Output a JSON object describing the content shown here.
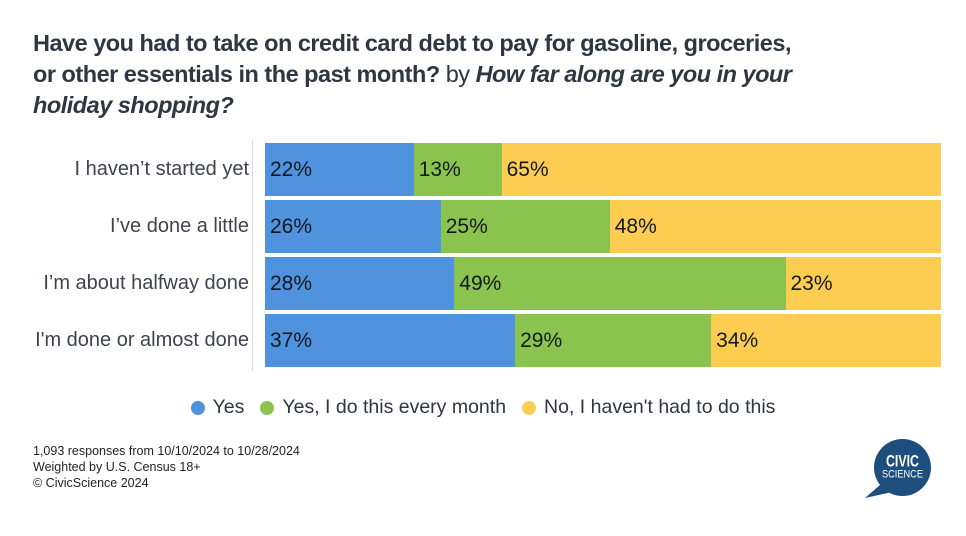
{
  "title": {
    "line1": "Have you had to take on credit card debt to pay for gasoline, groceries,",
    "line2_q1_end": "or other essentials in the past month?",
    "line2_connector": " by ",
    "line2_q2_start": "How far along are you in your",
    "line3": "holiday shopping?"
  },
  "chart_data": {
    "type": "bar",
    "variant": "horizontal-stacked",
    "unit": "%",
    "xlim": [
      0,
      100
    ],
    "grid": "off",
    "legend_position": "bottom-center",
    "value_labels": "inside-segment-start",
    "categories": [
      "I haven’t started yet",
      "I’ve done a little",
      "I’m about halfway done",
      "I'm done or almost done"
    ],
    "series": [
      {
        "name": "Yes",
        "color": "#4f92de",
        "values": [
          22,
          26,
          28,
          37
        ]
      },
      {
        "name": "Yes, I do this every month",
        "color": "#8bc34f",
        "values": [
          13,
          25,
          49,
          29
        ]
      },
      {
        "name": "No, I haven't had to do this",
        "color": "#fccd51",
        "values": [
          65,
          48,
          23,
          34
        ]
      }
    ]
  },
  "footer": {
    "lines": [
      "1,093 responses from 10/10/2024 to 10/28/2024",
      "Weighted by U.S. Census 18+",
      "© CivicScience 2024"
    ]
  },
  "logo": {
    "top": "CIVIC",
    "bottom": "SCIENCE",
    "bubble_color": "#1e4e7d"
  },
  "colors": {
    "title_text": "#2d3642",
    "category_text": "#3d4450",
    "value_text": "#14181d",
    "axis_line": "#d8dbdd",
    "background": "#ffffff"
  }
}
